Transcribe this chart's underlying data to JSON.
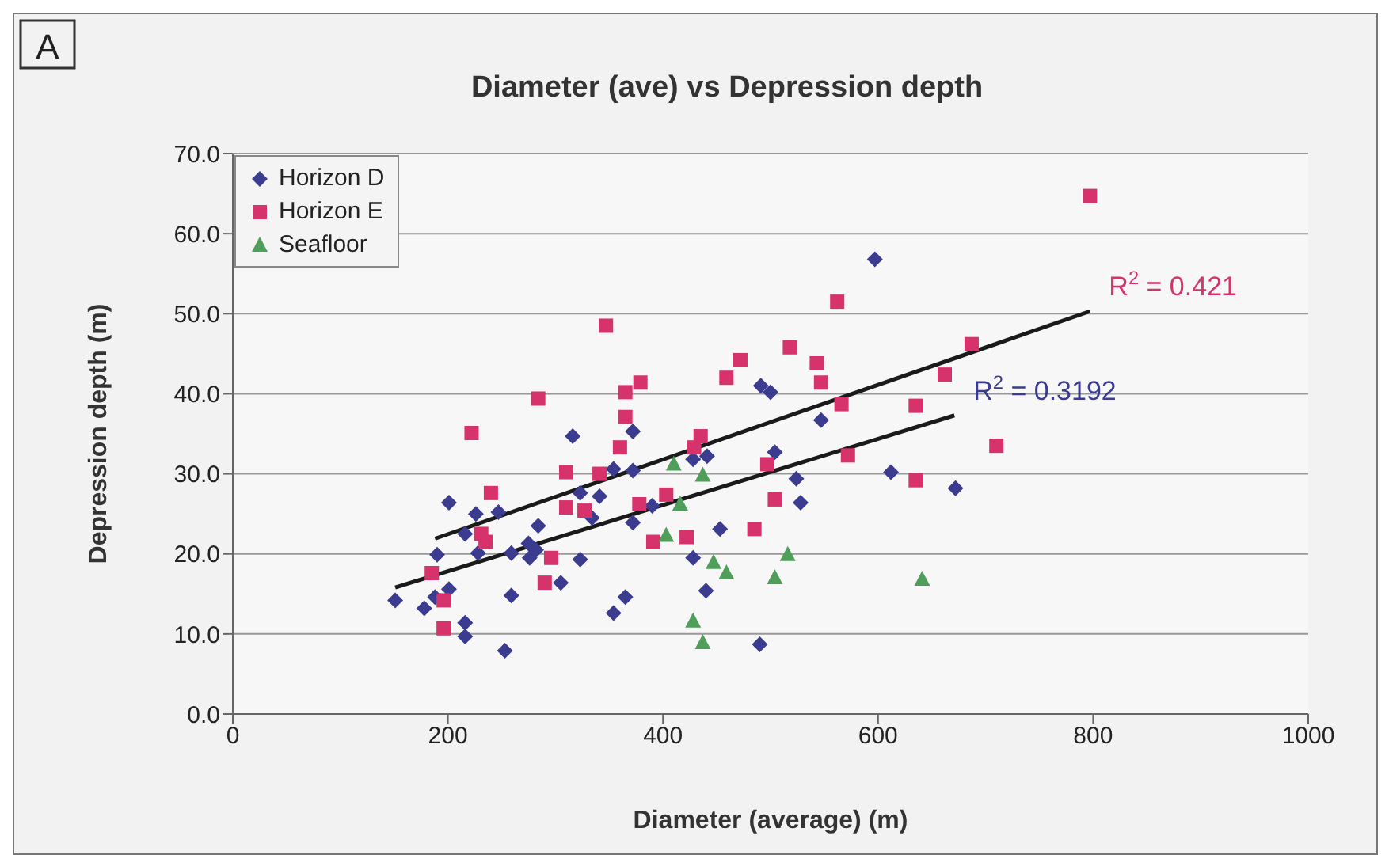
{
  "chart_data": {
    "type": "scatter",
    "title": "Diameter (ave) vs Depression depth",
    "xlabel": "Diameter (average) (m)",
    "ylabel": "Depression depth (m)",
    "xlim": [
      0,
      1000
    ],
    "xticks": [
      0,
      200,
      400,
      600,
      800,
      1000
    ],
    "ylim": [
      0,
      70
    ],
    "yticks": [
      {
        "value": 0,
        "label": "0.0"
      },
      {
        "value": 10,
        "label": "10.0"
      },
      {
        "value": 20,
        "label": "20.0"
      },
      {
        "value": 30,
        "label": "30.0"
      },
      {
        "value": 40,
        "label": "40.0"
      },
      {
        "value": 50,
        "label": "50.0"
      },
      {
        "value": 60,
        "label": "60.0"
      },
      {
        "value": 70,
        "label": "70.0"
      }
    ],
    "grid": "y",
    "legend": "top left",
    "annotations": [
      "A",
      {
        "text": "R$^{2}$ = 0.3192",
        "x": 671,
        "y": 37.3
      },
      {
        "text": "R$^{2}$ = 0.421",
        "x": 797,
        "y": 50.3
      }
    ],
    "series": [
      {
        "name": "Horizon D",
        "color": "#3b3b8f",
        "marker": "diamond",
        "x": [
          201,
          226,
          247,
          284,
          216,
          190,
          228,
          259,
          275,
          276,
          282,
          151,
          178,
          201,
          188,
          259,
          216,
          216,
          253,
          354,
          372,
          441,
          428,
          504,
          524,
          528,
          323,
          341,
          334,
          390,
          372,
          418,
          453,
          305,
          323,
          428,
          440,
          365,
          354,
          490,
          491,
          500,
          547,
          316,
          372,
          597,
          612,
          672
        ],
        "values": [
          26.4,
          25,
          25.2,
          23.5,
          22.5,
          19.9,
          20.1,
          20.1,
          21.3,
          19.5,
          20.5,
          14.2,
          13.2,
          15.6,
          14.6,
          14.8,
          11.4,
          9.7,
          7.9,
          30.6,
          30.4,
          32.2,
          31.8,
          32.7,
          29.4,
          26.4,
          27.6,
          27.2,
          24.5,
          26,
          23.9,
          null,
          23.1,
          16.4,
          19.3,
          19.5,
          15.4,
          14.6,
          12.6,
          8.7,
          41,
          40.2,
          36.7,
          34.7,
          35.3,
          56.8,
          30.2,
          28.2
        ]
      },
      {
        "name": "Horizon E",
        "color": "#d6336c",
        "marker": "square",
        "x": [
          240,
          231,
          235,
          185,
          290,
          196,
          196,
          284,
          222,
          360,
          310,
          341,
          429,
          497,
          572,
          504,
          310,
          327,
          378,
          403,
          391,
          422,
          485,
          296,
          347,
          562,
          365,
          379,
          459,
          472,
          518,
          543,
          547,
          566,
          365,
          435,
          797,
          687,
          662,
          635,
          710,
          635
        ],
        "values": [
          27.6,
          22.5,
          21.5,
          17.6,
          16.4,
          14.2,
          10.7,
          39.4,
          35.1,
          33.3,
          30.2,
          30,
          33.3,
          31.2,
          32.3,
          26.8,
          25.8,
          25.4,
          26.2,
          27.4,
          21.5,
          22.1,
          23.1,
          19.5,
          48.5,
          51.5,
          40.2,
          41.4,
          42,
          44.2,
          45.8,
          43.8,
          41.4,
          38.7,
          37.1,
          34.7,
          64.7,
          46.2,
          42.4,
          38.5,
          33.5,
          29.2
        ]
      },
      {
        "name": "Seafloor",
        "color": "#4f9e5a",
        "marker": "triangle",
        "x": [
          410,
          437,
          416,
          403,
          447,
          459,
          516,
          504,
          428,
          437,
          641
        ],
        "values": [
          31.2,
          29.8,
          26.2,
          22.3,
          18.9,
          17.6,
          19.9,
          17,
          11.6,
          8.9,
          16.8
        ]
      },
      {
        "type": "line",
        "color": "#1a1a1a",
        "marker": "none",
        "x": [
          151,
          671
        ],
        "values": [
          15.8,
          37.3
        ]
      },
      {
        "type": "line",
        "color": "#1a1a1a",
        "marker": "none",
        "x": [
          188,
          797
        ],
        "values": [
          21.9,
          50.3
        ]
      }
    ]
  }
}
